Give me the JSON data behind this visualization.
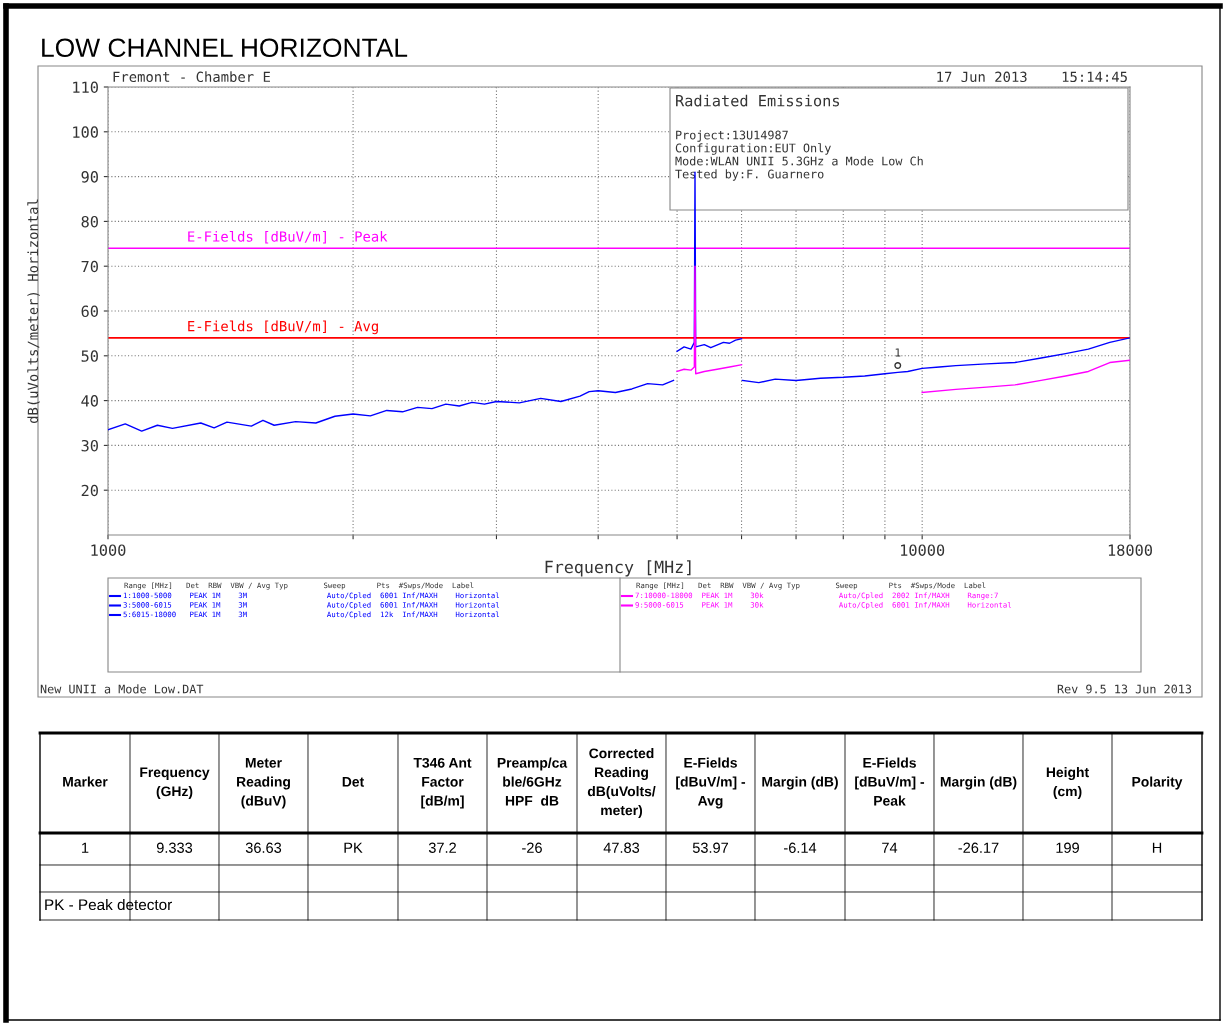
{
  "chart_data": {
    "type": "line",
    "title": "LOW CHANNEL HORIZONTAL",
    "xlabel": "Frequency [MHz]",
    "ylabel": "dB(uVolts/meter) Horizontal",
    "log": "x",
    "xlim": [
      1000,
      18000
    ],
    "ylim": [
      10,
      110
    ],
    "xticks": [
      1000,
      {
        "value": 2000,
        "label": null
      },
      {
        "value": 3000,
        "label": null
      },
      {
        "value": 4000,
        "label": null
      },
      {
        "value": 5000,
        "label": null
      },
      {
        "value": 6000,
        "label": null
      },
      {
        "value": 7000,
        "label": null
      },
      {
        "value": 8000,
        "label": null
      },
      {
        "value": 9000,
        "label": null
      },
      10000,
      18000
    ],
    "yticks": [
      20,
      30,
      40,
      50,
      60,
      70,
      80,
      90,
      100,
      110
    ],
    "grid": true,
    "legend": "bottom",
    "marker": "none",
    "line_style": "solid",
    "legend_title": "Range [MHz]   Det  RBW  VBW / Avg Typ        Sweep       Pts  #Swps/Mode  Label",
    "series": [
      {
        "name": "1:1000-5000    PEAK 1M    3M                  Auto/Cpled  6001 Inf/MAXH    Horizontal",
        "color": "#0000ff",
        "x": [
          1000,
          1050,
          1100,
          1150,
          1200,
          1300,
          1350,
          1400,
          1500,
          1550,
          1600,
          1700,
          1800,
          1900,
          2000,
          2100,
          2200,
          2300,
          2400,
          2500,
          2600,
          2700,
          2800,
          2900,
          3000,
          3200,
          3400,
          3600,
          3800,
          3900,
          4000,
          4200,
          4400,
          4600,
          4800,
          4950
        ],
        "values": [
          33.5,
          34.8,
          33.2,
          34.5,
          33.8,
          35,
          33.9,
          35.2,
          34.3,
          35.6,
          34.5,
          35.3,
          35,
          36.5,
          37,
          36.6,
          37.8,
          37.5,
          38.5,
          38.2,
          39.2,
          38.8,
          39.6,
          39.2,
          39.8,
          39.5,
          40.5,
          39.8,
          41,
          42,
          42.2,
          41.8,
          42.6,
          43.8,
          43.5,
          44.5
        ]
      },
      {
        "name": "3:5000-6015    PEAK 1M    3M                  Auto/Cpled  6001 Inf/MAXH    Horizontal",
        "color": "#0000ff",
        "x": [
          5000,
          5100,
          5200,
          5250,
          5260,
          5270,
          5400,
          5500,
          5700,
          5800,
          5900,
          6000
        ],
        "values": [
          51,
          52,
          51.5,
          53,
          91,
          52,
          52.5,
          51.8,
          53,
          52.8,
          53.5,
          53.8
        ]
      },
      {
        "name": "5:6015-18000   PEAK 1M    3M                  Auto/Cpled  12k  Inf/MAXH    Horizontal",
        "color": "#0000ff",
        "x": [
          6015,
          6300,
          6600,
          7000,
          7500,
          8000,
          8500,
          9000,
          9333,
          9600,
          10000,
          10500,
          11000,
          12000,
          13000,
          14000,
          15000,
          16000,
          17000,
          18000
        ],
        "values": [
          44.5,
          44,
          44.8,
          44.5,
          45,
          45.2,
          45.5,
          46,
          46.3,
          46.5,
          47.2,
          47.5,
          47.8,
          48.2,
          48.5,
          49.5,
          50.5,
          51.5,
          53,
          54
        ]
      },
      {
        "name": "7:10000-18000  PEAK 1M    30k                 Auto/Cpled  2002 Inf/MAXH    Range:7",
        "color": "#ff00ff",
        "x": [
          10000,
          11000,
          12000,
          13000,
          14000,
          15000,
          16000,
          17000,
          18000
        ],
        "values": [
          41.8,
          42.5,
          43,
          43.5,
          44.5,
          45.5,
          46.5,
          48.5,
          49
        ]
      },
      {
        "name": "9:5000-6015    PEAK 1M    30k                 Auto/Cpled  6001 Inf/MAXH    Horizontal",
        "color": "#ff00ff",
        "x": [
          5000,
          5100,
          5200,
          5250,
          5260,
          5270,
          5400,
          5600,
          5800,
          6000
        ],
        "values": [
          46.5,
          47,
          46.8,
          47.5,
          70,
          46,
          46.5,
          47,
          47.5,
          48
        ]
      }
    ],
    "ref_lines": [
      {
        "axis": "y",
        "value": 74,
        "label": "E-Fields [dBuV/m] - Peak",
        "color": "#ff00ff"
      },
      {
        "axis": "y",
        "value": 54,
        "label": "E-Fields [dBuV/m] - Avg",
        "color": "#ff0000"
      }
    ],
    "annotations": [
      "Fremont - Chamber E",
      "17 Jun 2013    15:14:45",
      "Radiated Emissions",
      "Project:13U14987",
      "Configuration:EUT Only",
      "Mode:WLAN UNII 5.3GHz a Mode Low Ch",
      "Tested by:F. Guarnero",
      "New UNII a Mode Low.DAT",
      "Rev 9.5 13 Jun 2013",
      "Marker",
      "Frequency\n(GHz)",
      "Meter\nReading\n(dBuV)",
      "Det",
      "T346 Ant\nFactor\n[dB/m]",
      "Preamp/ca\nble/6GHz\nHPF  dB",
      "Corrected\nReading\ndB(uVolts/\nmeter)",
      "E-Fields\n[dBuV/m] -\nAvg",
      "Margin (dB)",
      "E-Fields\n[dBuV/m] -\nPeak",
      "Margin (dB)",
      "Height\n(cm)",
      "Polarity",
      "1",
      "9.333",
      "36.63",
      "PK",
      "37.2",
      "-26",
      "47.83",
      "53.97",
      "-6.14",
      "74",
      "-26.17",
      "199",
      "H",
      "PK - Peak detector",
      {
        "text": "1",
        "x": 9333,
        "y": 47.83
      }
    ]
  }
}
